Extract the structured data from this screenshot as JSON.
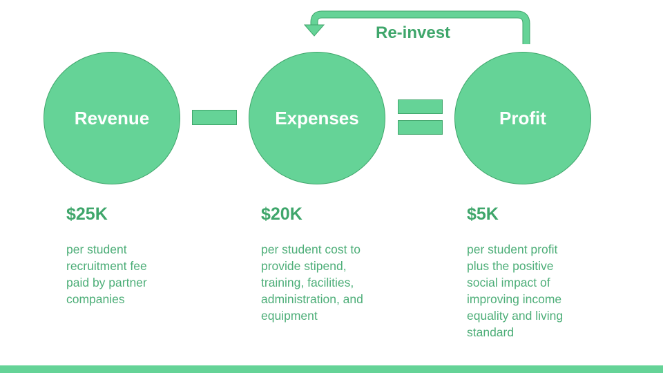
{
  "reinvest_label": "Re-invest",
  "columns": [
    {
      "circle_label": "Revenue",
      "amount": "$25K",
      "description": "per student\nrecruitment fee\npaid by partner\ncompanies"
    },
    {
      "circle_label": "Expenses",
      "amount": "$20K",
      "description": "per student cost to\nprovide stipend,\ntraining, facilities,\nadministration, and\nequipment"
    },
    {
      "circle_label": "Profit",
      "amount": "$5K",
      "description": "per student profit\nplus the positive\nsocial impact of\nimproving income\nequality and living\nstandard"
    }
  ],
  "operators": {
    "minus": "minus-sign",
    "equals": "equals-sign"
  },
  "colors": {
    "accent_fill": "#65d397",
    "accent_stroke": "#3fa66b",
    "text_green": "#3fa66b"
  }
}
